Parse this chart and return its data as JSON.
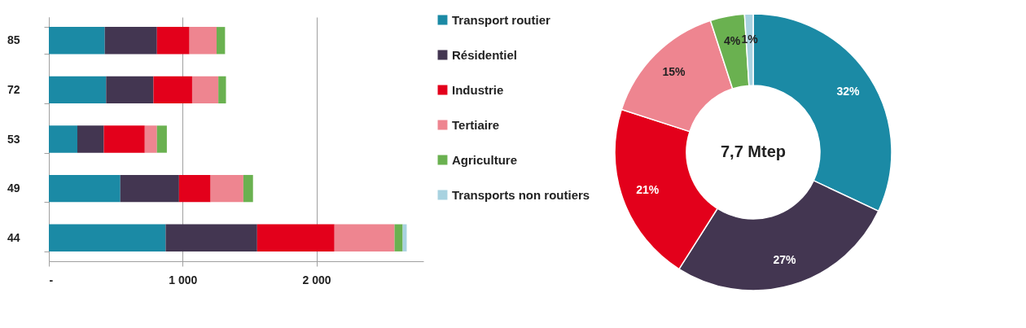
{
  "chart_data": [
    {
      "type": "bar",
      "orientation": "horizontal",
      "stacked": true,
      "categories": [
        "85",
        "72",
        "53",
        "49",
        "44"
      ],
      "series": [
        {
          "color": "#1b8aa5",
          "values": [
            418,
            428,
            213,
            534,
            873
          ]
        },
        {
          "color": "#433651",
          "values": [
            390,
            354,
            198,
            439,
            684
          ]
        },
        {
          "color": "#e3001b",
          "values": [
            243,
            289,
            306,
            236,
            578
          ]
        },
        {
          "color": "#ee8590",
          "values": [
            203,
            196,
            91,
            245,
            449
          ]
        },
        {
          "color": "#6ab150",
          "values": [
            63,
            57,
            74,
            72,
            61
          ]
        },
        {
          "color": "#a8d2e0",
          "values": [
            0,
            0,
            0,
            0,
            30
          ]
        }
      ],
      "xlim": [
        0,
        2800
      ],
      "xticks": [
        {
          "value": 0,
          "label": "-"
        },
        {
          "value": 1000,
          "label": "1 000"
        },
        {
          "value": 2000,
          "label": "2 000"
        }
      ],
      "grid": "x"
    },
    {
      "type": "donut",
      "categories": [
        "Transport routier",
        "Résidentiel",
        "Industrie",
        "Tertiaire",
        "Agriculture",
        "Transports non routiers"
      ],
      "values": [
        32,
        27,
        21,
        15,
        4,
        1
      ],
      "value_labels": [
        "32%",
        "27%",
        "21%",
        "15%",
        "4%",
        "1%"
      ],
      "colors": [
        "#1b8aa5",
        "#433651",
        "#e3001b",
        "#ee8590",
        "#6ab150",
        "#a8d2e0"
      ],
      "legend": "left",
      "annotations": [
        "7,7 Mtep"
      ]
    }
  ]
}
